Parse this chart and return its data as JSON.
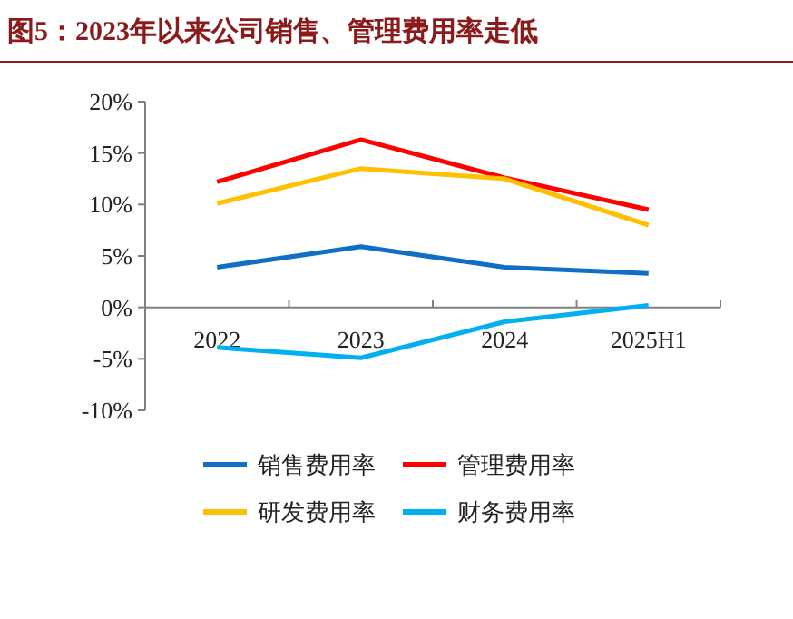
{
  "chart_data": {
    "type": "line",
    "title": "图5：2023年以来公司销售、管理费用率走低",
    "categories": [
      "2022",
      "2023",
      "2024",
      "2025H1"
    ],
    "series": [
      {
        "name": "销售费用率",
        "color": "#0f6fc6",
        "values": [
          3.9,
          5.9,
          3.9,
          3.3
        ]
      },
      {
        "name": "管理费用率",
        "color": "#ff0000",
        "values": [
          12.2,
          16.3,
          12.6,
          9.5
        ]
      },
      {
        "name": "研发费用率",
        "color": "#ffc000",
        "values": [
          10.1,
          13.5,
          12.5,
          8.0
        ]
      },
      {
        "name": "财务费用率",
        "color": "#00b0f0",
        "values": [
          -3.9,
          -4.9,
          -1.4,
          0.2
        ]
      }
    ],
    "ylim": [
      -10,
      20
    ],
    "yticks": [
      {
        "value": -10,
        "label": "-10%"
      },
      {
        "value": -5,
        "label": "-5%"
      },
      {
        "value": 0,
        "label": "0%"
      },
      {
        "value": 5,
        "label": "5%"
      },
      {
        "value": 10,
        "label": "10%"
      },
      {
        "value": 15,
        "label": "15%"
      },
      {
        "value": 20,
        "label": "20%"
      }
    ],
    "grid": false,
    "legend": "bottom",
    "marker": "none",
    "line_style": "solid"
  }
}
